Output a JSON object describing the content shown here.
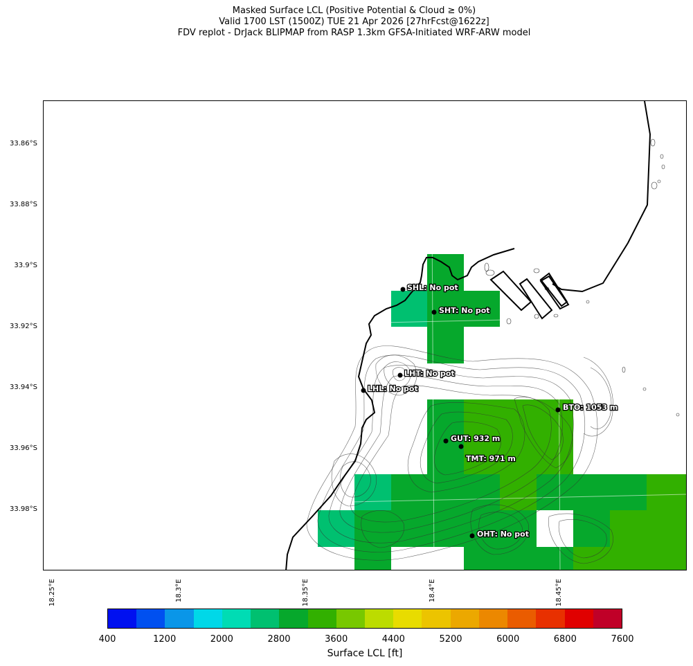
{
  "title": {
    "line1": "Masked Surface LCL (Positive Potential & Cloud ≥ 0%)",
    "line2": "Valid 1700 LST (1500Z) TUE 21 Apr 2026 [27hrFcst@1622z]",
    "line3": "FDV replot - DrJack BLIPMAP from RASP 1.3km GFSA-Initiated WRF-ARW model"
  },
  "axes": {
    "lat_labels": [
      "33.86°S",
      "33.88°S",
      "33.9°S",
      "33.92°S",
      "33.94°S",
      "33.96°S",
      "33.98°S"
    ],
    "lon_labels": [
      "18.25°E",
      "18.3°E",
      "18.35°E",
      "18.4°E",
      "18.45°E"
    ]
  },
  "stations": [
    {
      "code": "SHL",
      "label": "SHL: No pot"
    },
    {
      "code": "SHT",
      "label": "SHT: No pot"
    },
    {
      "code": "LHT",
      "label": "LHT: No pot"
    },
    {
      "code": "LHL",
      "label": "LHL: No pot"
    },
    {
      "code": "BTO",
      "label": "BTO: 1053 m"
    },
    {
      "code": "GUT",
      "label": "GUT: 932 m"
    },
    {
      "code": "TMT",
      "label": "TMT: 971 m"
    },
    {
      "code": "OHT",
      "label": "OHT: No pot"
    }
  ],
  "colorbar": {
    "label": "Surface LCL [ft]",
    "ticks": [
      "400",
      "1200",
      "2000",
      "2800",
      "3600",
      "4400",
      "5200",
      "6000",
      "6800",
      "7600"
    ],
    "colors": [
      "#0010f0",
      "#0050f0",
      "#0a96e8",
      "#00d8e8",
      "#00dcb4",
      "#00c070",
      "#06a82c",
      "#32b000",
      "#78c800",
      "#bcdc00",
      "#e8dc00",
      "#ecc400",
      "#eca800",
      "#ec8800",
      "#ea5c00",
      "#e83000",
      "#e00000",
      "#c00028"
    ]
  }
}
